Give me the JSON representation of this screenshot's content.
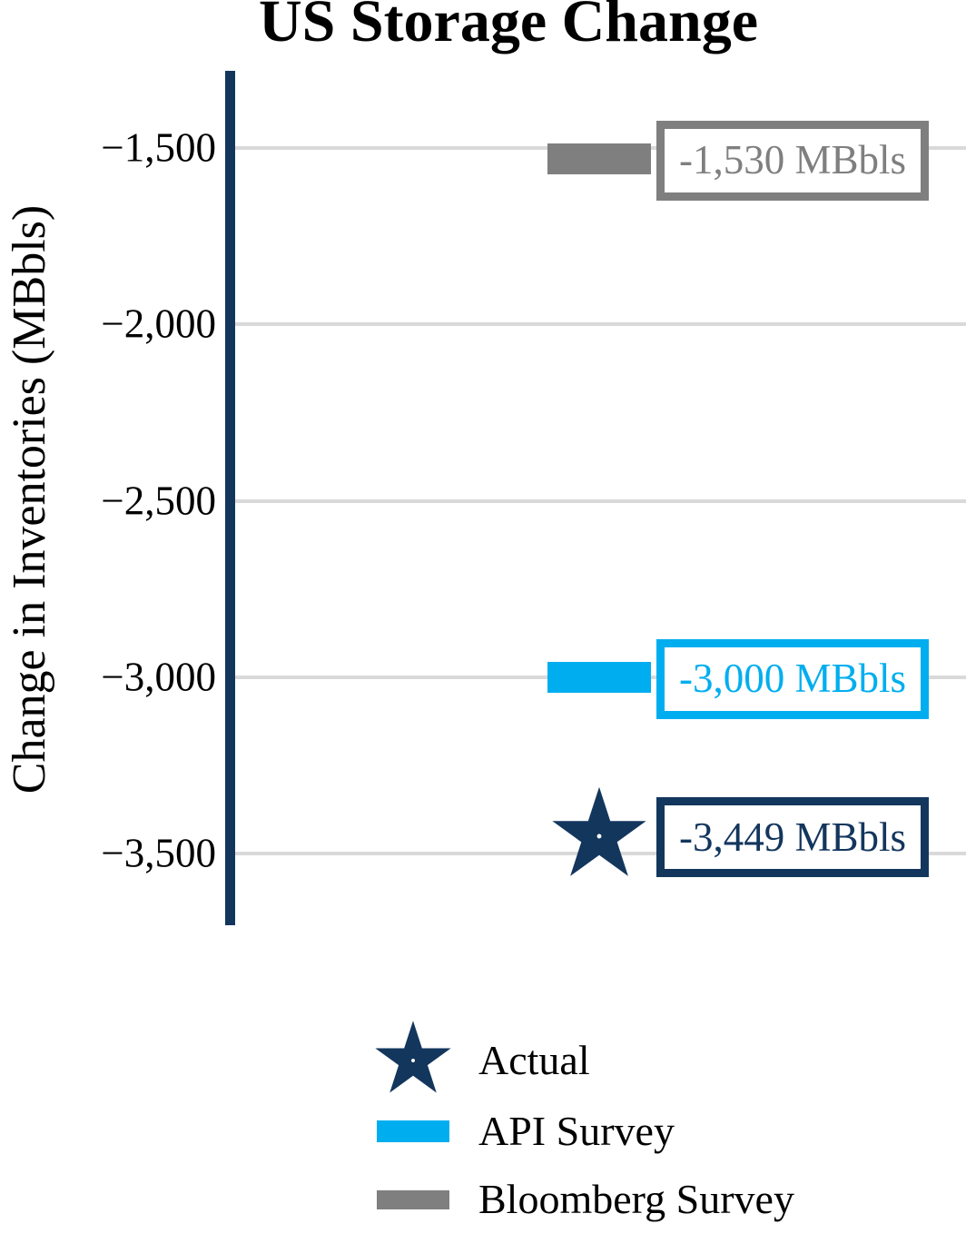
{
  "colors": {
    "navy": "#13365d",
    "blue": "#00aeef",
    "gray": "#7f7f7f",
    "gridline": "#d9d9d9",
    "text": "#000000",
    "background": "#ffffff"
  },
  "chart_data": {
    "type": "scatter",
    "title": "US Storage Change",
    "xlabel": "",
    "ylabel": "Change in Inventories (MBbls)",
    "ylim": [
      -3700,
      -1280
    ],
    "grid": true,
    "legend_position": "bottom",
    "units": "MBbls",
    "yticks": [
      {
        "value": -1500,
        "label": "−1,500"
      },
      {
        "value": -2000,
        "label": "−2,000"
      },
      {
        "value": -2500,
        "label": "−2,500"
      },
      {
        "value": -3000,
        "label": "−3,000"
      },
      {
        "value": -3500,
        "label": "−3,500"
      }
    ],
    "points": [
      {
        "series": "Bloomberg Survey",
        "value": -1530,
        "label": "-1,530 MBbls",
        "marker": "bar",
        "color": "#7f7f7f"
      },
      {
        "series": "API Survey",
        "value": -3000,
        "label": "-3,000 MBbls",
        "marker": "bar",
        "color": "#00aeef"
      },
      {
        "series": "Actual",
        "value": -3449,
        "label": "-3,449 MBbls",
        "marker": "star",
        "color": "#13365d"
      }
    ],
    "legend": [
      {
        "label": "Actual",
        "marker": "star",
        "color": "#13365d"
      },
      {
        "label": "API Survey",
        "marker": "bar",
        "color": "#00aeef"
      },
      {
        "label": "Bloomberg Survey",
        "marker": "bar",
        "color": "#7f7f7f"
      }
    ]
  }
}
